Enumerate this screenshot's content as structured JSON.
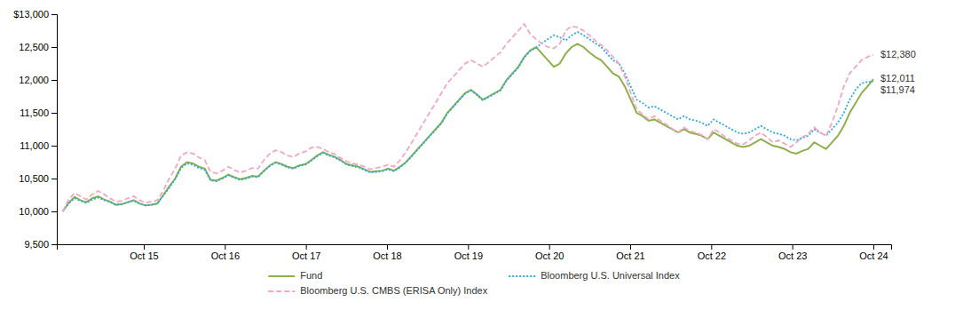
{
  "chart_data": {
    "type": "line",
    "series": [
      {
        "name": "Fund",
        "color": "#8db04b",
        "line_style": "solid",
        "end_label": "$12,011",
        "values": [
          10000,
          10130,
          10220,
          10170,
          10140,
          10200,
          10230,
          10180,
          10150,
          10100,
          10110,
          10140,
          10170,
          10120,
          10090,
          10100,
          10120,
          10250,
          10380,
          10500,
          10680,
          10750,
          10730,
          10680,
          10650,
          10480,
          10470,
          10510,
          10560,
          10520,
          10490,
          10510,
          10540,
          10530,
          10620,
          10700,
          10750,
          10720,
          10680,
          10660,
          10700,
          10720,
          10780,
          10850,
          10900,
          10860,
          10830,
          10780,
          10720,
          10700,
          10680,
          10640,
          10600,
          10610,
          10620,
          10650,
          10620,
          10680,
          10750,
          10850,
          10950,
          11050,
          11150,
          11250,
          11350,
          11500,
          11600,
          11700,
          11800,
          11850,
          11780,
          11700,
          11750,
          11800,
          11850,
          12000,
          12100,
          12200,
          12350,
          12450,
          12500,
          12400,
          12300,
          12200,
          12250,
          12400,
          12500,
          12550,
          12500,
          12420,
          12350,
          12300,
          12200,
          12100,
          12050,
          11900,
          11700,
          11500,
          11450,
          11380,
          11400,
          11350,
          11300,
          11250,
          11200,
          11250,
          11200,
          11180,
          11150,
          11100,
          11200,
          11150,
          11100,
          11050,
          11000,
          10980,
          11000,
          11050,
          11100,
          11050,
          11000,
          10980,
          10950,
          10900,
          10880,
          10920,
          10950,
          11050,
          11000,
          10950,
          11050,
          11150,
          11300,
          11500,
          11650,
          11800,
          11900,
          12011
        ]
      },
      {
        "name": "Bloomberg U.S. Universal Index",
        "color": "#29abe2",
        "line_style": "dotted",
        "end_label": "$11,974",
        "values": [
          10000,
          10120,
          10200,
          10160,
          10130,
          10180,
          10210,
          10170,
          10140,
          10100,
          10110,
          10140,
          10160,
          10120,
          10090,
          10100,
          10120,
          10240,
          10360,
          10490,
          10660,
          10730,
          10710,
          10660,
          10630,
          10470,
          10460,
          10500,
          10550,
          10510,
          10480,
          10500,
          10530,
          10520,
          10610,
          10690,
          10740,
          10710,
          10670,
          10650,
          10690,
          10710,
          10770,
          10840,
          10890,
          10850,
          10820,
          10770,
          10710,
          10690,
          10670,
          10630,
          10590,
          10600,
          10610,
          10640,
          10610,
          10670,
          10740,
          10840,
          10940,
          11040,
          11140,
          11240,
          11340,
          11490,
          11590,
          11690,
          11790,
          11840,
          11770,
          11690,
          11740,
          11790,
          11840,
          11990,
          12090,
          12190,
          12340,
          12440,
          12490,
          12560,
          12620,
          12680,
          12650,
          12600,
          12680,
          12730,
          12680,
          12620,
          12560,
          12500,
          12400,
          12300,
          12250,
          12100,
          11900,
          11700,
          11650,
          11580,
          11600,
          11550,
          11500,
          11450,
          11400,
          11450,
          11400,
          11380,
          11350,
          11300,
          11400,
          11350,
          11300,
          11250,
          11200,
          11180,
          11200,
          11250,
          11300,
          11250,
          11200,
          11180,
          11150,
          11100,
          11080,
          11120,
          11150,
          11250,
          11200,
          11150,
          11250,
          11350,
          11500,
          11700,
          11850,
          11950,
          11970,
          11974
        ]
      },
      {
        "name": "Bloomberg U.S. CMBS (ERISA Only) Index",
        "color": "#f4a7c3",
        "line_style": "dashed",
        "end_label": "$12,380",
        "values": [
          10000,
          10180,
          10280,
          10230,
          10180,
          10260,
          10310,
          10260,
          10200,
          10150,
          10160,
          10200,
          10230,
          10170,
          10130,
          10150,
          10170,
          10320,
          10500,
          10650,
          10850,
          10900,
          10880,
          10820,
          10780,
          10600,
          10580,
          10620,
          10680,
          10630,
          10590,
          10620,
          10660,
          10650,
          10780,
          10880,
          10930,
          10900,
          10850,
          10830,
          10880,
          10910,
          10970,
          10980,
          10950,
          10900,
          10870,
          10810,
          10760,
          10730,
          10710,
          10680,
          10640,
          10660,
          10680,
          10710,
          10680,
          10780,
          10900,
          11050,
          11200,
          11350,
          11500,
          11650,
          11800,
          11950,
          12050,
          12150,
          12250,
          12300,
          12250,
          12200,
          12270,
          12350,
          12420,
          12550,
          12650,
          12750,
          12850,
          12700,
          12620,
          12550,
          12500,
          12480,
          12550,
          12750,
          12820,
          12800,
          12750,
          12680,
          12600,
          12530,
          12450,
          12350,
          12250,
          12050,
          11800,
          11550,
          11480,
          11400,
          11450,
          11380,
          11320,
          11260,
          11200,
          11280,
          11220,
          11200,
          11160,
          11100,
          11250,
          11200,
          11130,
          11080,
          11030,
          11020,
          11080,
          11150,
          11200,
          11130,
          11050,
          11080,
          11030,
          10980,
          11050,
          11130,
          11180,
          11280,
          11200,
          11150,
          11350,
          11600,
          11900,
          12100,
          12200,
          12300,
          12350,
          12380
        ]
      }
    ],
    "xlim": [
      -1,
      140
    ],
    "xticks": [
      {
        "value": 13.7,
        "label": "Oct 15"
      },
      {
        "value": 27.4,
        "label": "Oct 16"
      },
      {
        "value": 41.1,
        "label": "Oct 17"
      },
      {
        "value": 54.8,
        "label": "Oct 18"
      },
      {
        "value": 68.5,
        "label": "Oct 19"
      },
      {
        "value": 82.2,
        "label": "Oct 20"
      },
      {
        "value": 95.9,
        "label": "Oct 21"
      },
      {
        "value": 109.6,
        "label": "Oct 22"
      },
      {
        "value": 123.3,
        "label": "Oct 23"
      },
      {
        "value": 137,
        "label": "Oct 24"
      }
    ],
    "ylim": [
      9500,
      13000
    ],
    "yticks": [
      {
        "value": 9500,
        "label": "9,500"
      },
      {
        "value": 10000,
        "label": "10,000"
      },
      {
        "value": 10500,
        "label": "10,500"
      },
      {
        "value": 11000,
        "label": "11,000"
      },
      {
        "value": 11500,
        "label": "11,500"
      },
      {
        "value": 12000,
        "label": "12,000"
      },
      {
        "value": 12500,
        "label": "12,500"
      },
      {
        "value": 13000,
        "label": "$13,000"
      }
    ],
    "grid": false,
    "legend": "bottom"
  }
}
